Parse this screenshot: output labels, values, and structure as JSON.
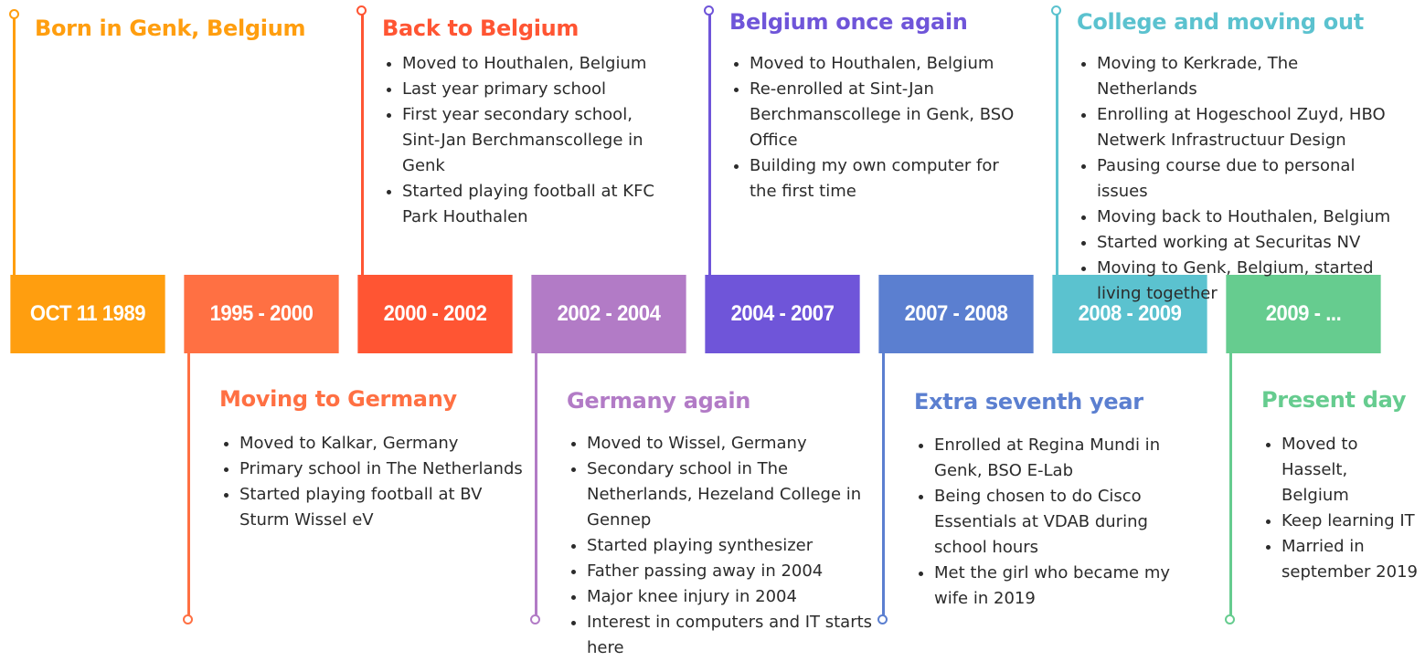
{
  "periods": [
    {
      "label": "OCT 11 1989",
      "color": "#FF9E0F",
      "position": "top",
      "title": "Born in Genk, Belgium",
      "items": []
    },
    {
      "label": "1995 - 2000",
      "color": "#FF7043",
      "position": "bottom",
      "title": "Moving to Germany",
      "items": [
        "Moved to Kalkar, Germany",
        "Primary school in The Netherlands",
        "Started playing football at BV Sturm Wissel eV"
      ]
    },
    {
      "label": "2000 - 2002",
      "color": "#FF5533",
      "position": "top",
      "title": "Back to Belgium",
      "items": [
        "Moved to Houthalen, Belgium",
        "Last year primary school",
        "First year secondary school, Sint-Jan Berchmanscollege in Genk",
        "Started playing football at KFC Park Houthalen"
      ]
    },
    {
      "label": "2002 - 2004",
      "color": "#B27BC6",
      "position": "bottom",
      "title": "Germany again",
      "items": [
        "Moved to Wissel, Germany",
        "Secondary school in The Netherlands, Hezeland College in Gennep",
        "Started playing synthesizer",
        "Father passing away in 2004",
        "Major knee injury in 2004",
        "Interest in computers and IT starts here"
      ]
    },
    {
      "label": "2004 - 2007",
      "color": "#6F55D9",
      "position": "top",
      "title": "Belgium once again",
      "items": [
        "Moved to Houthalen, Belgium",
        "Re-enrolled at Sint-Jan Berchmanscollege in Genk, BSO Office",
        "Building my own computer for the first time"
      ]
    },
    {
      "label": "2007 - 2008",
      "color": "#5B7FD0",
      "position": "bottom",
      "title": "Extra seventh year",
      "items": [
        "Enrolled at Regina Mundi in Genk, BSO E-Lab",
        "Being chosen to do Cisco Essentials at VDAB during school hours",
        "Met the girl who became my wife in 2019"
      ]
    },
    {
      "label": "2008 - 2009",
      "color": "#5BC2CF",
      "position": "top",
      "title": "College and moving out",
      "items": [
        "Moving to Kerkrade, The Netherlands",
        "Enrolling at Hogeschool Zuyd, HBO Netwerk Infrastructuur Design",
        "Pausing course due to personal issues",
        "Moving back to Houthalen, Belgium",
        "Started working at Securitas NV",
        "Moving to Genk, Belgium, started living together"
      ]
    },
    {
      "label": "2009 - ...",
      "color": "#66CC8F",
      "position": "bottom",
      "title": "Present day",
      "items": [
        "Moved to Hasselt, Belgium",
        "Keep learning IT",
        "Married in september 2019"
      ]
    }
  ]
}
